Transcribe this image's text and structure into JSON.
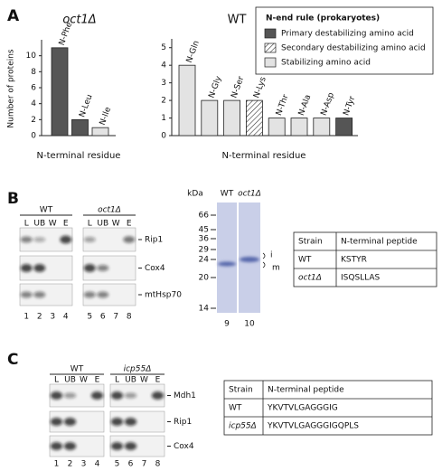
{
  "panels": [
    "A",
    "B",
    "C"
  ],
  "chart_data": [
    {
      "type": "bar",
      "title": "oct1Δ",
      "categories": [
        "N-Phe",
        "N-Leu",
        "N-Ile"
      ],
      "values": [
        11,
        2,
        1
      ],
      "colors": [
        "#555555",
        "#555555",
        "#e3e3e3"
      ],
      "hatch": [
        false,
        false,
        false
      ],
      "y_label": "Number of proteins",
      "x_label": "N-terminal residue",
      "ylim": [
        0,
        12
      ],
      "yticks": [
        0,
        2,
        4,
        6,
        8,
        10
      ]
    },
    {
      "type": "bar",
      "title": "WT",
      "categories": [
        "N-Gln",
        "N-Gly",
        "N-Ser",
        "N-Lys",
        "N-Thr",
        "N-Ala",
        "N-Asp",
        "N-Tyr"
      ],
      "values": [
        4,
        2,
        2,
        2,
        1,
        1,
        1,
        1
      ],
      "colors": [
        "#e3e3e3",
        "#e3e3e3",
        "#e3e3e3",
        "#ffffff",
        "#e3e3e3",
        "#e3e3e3",
        "#e3e3e3",
        "#555555"
      ],
      "hatch": [
        false,
        false,
        false,
        true,
        false,
        false,
        false,
        false
      ],
      "x_label": "N-terminal residue",
      "ylim": [
        0,
        5.5
      ],
      "yticks": [
        0,
        1,
        2,
        3,
        4,
        5
      ],
      "legend": {
        "title": "N-end rule (prokaryotes)",
        "items": [
          {
            "label": "Primary destabilizing amino acid",
            "color": "#555555",
            "hatch": false
          },
          {
            "label": "Secondary destabilizing amino acid",
            "color": "#ffffff",
            "hatch": true
          },
          {
            "label": "Stabilizing amino acid",
            "color": "#e3e3e3",
            "hatch": false
          }
        ]
      }
    }
  ],
  "blot_b": {
    "groups": [
      "WT",
      "oct1Δ"
    ],
    "lanes": [
      "L",
      "UB",
      "W",
      "E"
    ],
    "proteins": [
      "Rip1",
      "Cox4",
      "mtHsp70"
    ],
    "lane_numbers": [
      1,
      2,
      3,
      4,
      5,
      6,
      7,
      8
    ]
  },
  "gel_b": {
    "unit": "kDa",
    "lanes": [
      "WT",
      "oct1Δ"
    ],
    "markers": [
      66,
      45,
      36,
      29,
      24,
      20,
      14
    ],
    "forms": [
      "i",
      "m"
    ],
    "lane_numbers": [
      9,
      10
    ]
  },
  "table_b": {
    "header": [
      "Strain",
      "N-terminal peptide"
    ],
    "rows": [
      [
        "WT",
        "KSTYR"
      ],
      [
        "oct1Δ",
        "ISQSLLAS"
      ]
    ]
  },
  "blot_c": {
    "groups": [
      "WT",
      "icp55Δ"
    ],
    "lanes": [
      "L",
      "UB",
      "W",
      "E"
    ],
    "proteins": [
      "Mdh1",
      "Rip1",
      "Cox4"
    ],
    "lane_numbers": [
      1,
      2,
      3,
      4,
      5,
      6,
      7,
      8
    ]
  },
  "table_c": {
    "header": [
      "Strain",
      "N-terminal peptide"
    ],
    "rows": [
      [
        "WT",
        "YKVTVLGAGGGIG"
      ],
      [
        "icp55Δ",
        "YKVTVLGAGGGIGQPLS"
      ]
    ]
  }
}
